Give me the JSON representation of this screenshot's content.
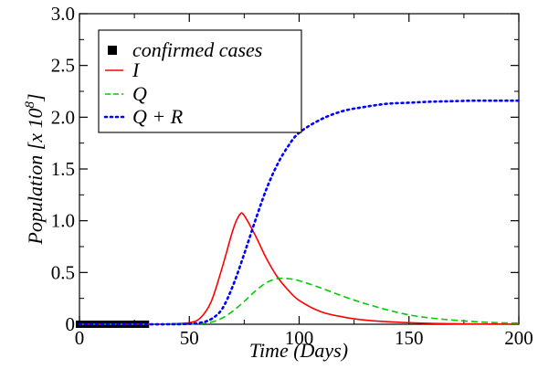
{
  "chart_data": {
    "type": "line",
    "xlabel": "Time (Days)",
    "ylabel": {
      "base": "Population [x 10",
      "exponent": "8",
      "close": "]"
    },
    "xlim": [
      0,
      200
    ],
    "ylim": [
      0,
      3.0
    ],
    "x_ticks": [
      "0",
      "50",
      "100",
      "150",
      "200"
    ],
    "y_ticks": [
      "0",
      "0.5",
      "1.0",
      "1.5",
      "2.0",
      "2.5",
      "3.0"
    ],
    "legend_position": "top-left",
    "series": [
      {
        "name": "confirmed cases",
        "style": "square-markers",
        "color": "#000000",
        "x": [
          0,
          2,
          4,
          6,
          8,
          10,
          12,
          14,
          16,
          18,
          20,
          22,
          24,
          26,
          28,
          30
        ],
        "y": [
          0,
          0,
          0,
          0,
          0,
          0,
          0,
          0,
          0,
          0,
          0,
          0,
          0,
          0,
          0.0001,
          0.0002
        ]
      },
      {
        "name": "I",
        "style": "solid",
        "color": "#ff0000",
        "x": [
          0,
          30,
          40,
          50,
          55,
          60,
          65,
          70,
          73,
          75,
          80,
          85,
          90,
          95,
          100,
          110,
          120,
          130,
          140,
          150,
          160,
          170,
          180,
          200
        ],
        "y": [
          0,
          0.0005,
          0.003,
          0.015,
          0.06,
          0.22,
          0.55,
          0.92,
          1.06,
          1.05,
          0.86,
          0.64,
          0.46,
          0.33,
          0.23,
          0.12,
          0.07,
          0.04,
          0.025,
          0.015,
          0.008,
          0.005,
          0.003,
          0
        ]
      },
      {
        "name": "Q",
        "style": "dashed",
        "color": "#00cc00",
        "x": [
          0,
          40,
          50,
          55,
          60,
          65,
          70,
          75,
          80,
          85,
          90,
          95,
          100,
          110,
          120,
          130,
          140,
          150,
          160,
          170,
          180,
          190,
          200
        ],
        "y": [
          0,
          0,
          0.002,
          0.006,
          0.02,
          0.06,
          0.13,
          0.22,
          0.32,
          0.4,
          0.44,
          0.44,
          0.42,
          0.35,
          0.27,
          0.2,
          0.14,
          0.09,
          0.06,
          0.04,
          0.025,
          0.015,
          0.01
        ]
      },
      {
        "name": "Q + R",
        "style": "dotted",
        "color": "#0000ff",
        "x": [
          0,
          40,
          50,
          55,
          60,
          65,
          70,
          75,
          80,
          85,
          90,
          95,
          100,
          110,
          120,
          130,
          140,
          150,
          160,
          170,
          180,
          190,
          200
        ],
        "y": [
          0,
          0,
          0.004,
          0.015,
          0.05,
          0.15,
          0.38,
          0.68,
          1.0,
          1.3,
          1.54,
          1.72,
          1.85,
          1.98,
          2.06,
          2.1,
          2.13,
          2.14,
          2.15,
          2.155,
          2.16,
          2.16,
          2.16
        ]
      }
    ]
  }
}
